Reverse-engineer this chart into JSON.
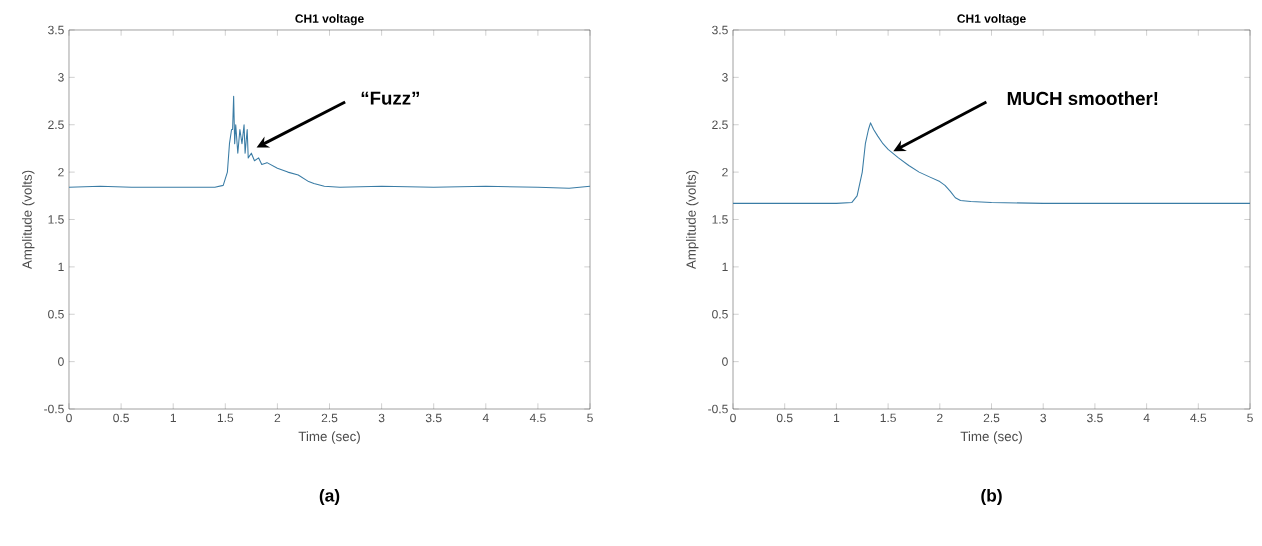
{
  "chart_data": [
    {
      "type": "line",
      "title": "CH1 voltage",
      "xlabel": "Time (sec)",
      "ylabel": "Amplitude (volts)",
      "x": [
        0,
        0.3,
        0.6,
        1.0,
        1.4,
        1.48,
        1.52,
        1.54,
        1.56,
        1.57,
        1.58,
        1.59,
        1.6,
        1.62,
        1.64,
        1.66,
        1.68,
        1.69,
        1.71,
        1.72,
        1.75,
        1.78,
        1.82,
        1.85,
        1.9,
        2.0,
        2.1,
        2.2,
        2.3,
        2.35,
        2.45,
        2.6,
        3.0,
        3.5,
        4.0,
        4.5,
        4.8,
        5.0
      ],
      "values": [
        1.84,
        1.85,
        1.84,
        1.84,
        1.84,
        1.86,
        2.0,
        2.3,
        2.45,
        2.45,
        2.8,
        2.3,
        2.5,
        2.2,
        2.45,
        2.3,
        2.5,
        2.2,
        2.45,
        2.15,
        2.2,
        2.12,
        2.15,
        2.08,
        2.1,
        2.04,
        2.0,
        1.97,
        1.9,
        1.88,
        1.85,
        1.84,
        1.85,
        1.84,
        1.85,
        1.84,
        1.83,
        1.85
      ],
      "color": "#3a7ca5",
      "xlim": [
        0,
        5
      ],
      "ylim": [
        -0.5,
        3.5
      ],
      "xticks": [
        0,
        0.5,
        1,
        1.5,
        2,
        2.5,
        3,
        3.5,
        4,
        4.5,
        5
      ],
      "yticks": [
        -0.5,
        0,
        0.5,
        1,
        1.5,
        2,
        2.5,
        3,
        3.5
      ],
      "annotations": [
        "“Fuzz”",
        "(a)"
      ]
    },
    {
      "type": "line",
      "title": "CH1 voltage",
      "xlabel": "Time (sec)",
      "ylabel": "Amplitude (volts)",
      "x": [
        0,
        0.5,
        1.0,
        1.15,
        1.2,
        1.25,
        1.28,
        1.31,
        1.33,
        1.36,
        1.4,
        1.45,
        1.5,
        1.6,
        1.7,
        1.8,
        1.9,
        2.0,
        2.05,
        2.1,
        2.15,
        2.2,
        2.3,
        2.5,
        3.0,
        3.5,
        4.0,
        4.5,
        5.0
      ],
      "values": [
        1.67,
        1.67,
        1.67,
        1.68,
        1.75,
        2.0,
        2.3,
        2.45,
        2.52,
        2.45,
        2.38,
        2.3,
        2.24,
        2.15,
        2.07,
        2.0,
        1.95,
        1.9,
        1.86,
        1.8,
        1.73,
        1.7,
        1.69,
        1.68,
        1.67,
        1.67,
        1.67,
        1.67,
        1.67
      ],
      "color": "#3a7ca5",
      "xlim": [
        0,
        5
      ],
      "ylim": [
        -0.5,
        3.5
      ],
      "xticks": [
        0,
        0.5,
        1,
        1.5,
        2,
        2.5,
        3,
        3.5,
        4,
        4.5,
        5
      ],
      "yticks": [
        -0.5,
        0,
        0.5,
        1,
        1.5,
        2,
        2.5,
        3,
        3.5
      ],
      "annotations": [
        "MUCH smoother!",
        "(b)"
      ]
    }
  ]
}
